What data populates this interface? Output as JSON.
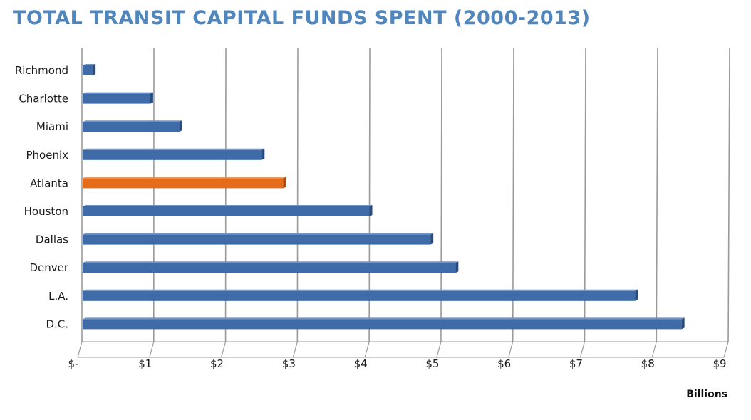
{
  "chart_data": {
    "type": "bar",
    "orientation": "horizontal",
    "title": "TOTAL TRANSIT CAPITAL FUNDS SPENT (2000-2013)",
    "xlabel": "Billions",
    "ylabel": "",
    "categories": [
      "Richmond",
      "Charlotte",
      "Miami",
      "Phoenix",
      "Atlanta",
      "Houston",
      "Dallas",
      "Denver",
      "L.A.",
      "D.C."
    ],
    "values": [
      0.15,
      0.95,
      1.35,
      2.5,
      2.8,
      4.0,
      4.85,
      5.2,
      7.7,
      8.35
    ],
    "highlight": "Atlanta",
    "xlim": [
      0,
      9
    ],
    "x_ticks": [
      {
        "value": 0,
        "label": "$-"
      },
      {
        "value": 1,
        "label": "$1"
      },
      {
        "value": 2,
        "label": "$2"
      },
      {
        "value": 3,
        "label": "$3"
      },
      {
        "value": 4,
        "label": "$4"
      },
      {
        "value": 5,
        "label": "$5"
      },
      {
        "value": 6,
        "label": "$6"
      },
      {
        "value": 7,
        "label": "$7"
      },
      {
        "value": 8,
        "label": "$8"
      },
      {
        "value": 9,
        "label": "$9"
      }
    ],
    "grid": true,
    "legend": "none",
    "colors": {
      "bar": "#3f6ca8",
      "bar_dark": "#2a4c7c",
      "bar_light": "#6f95c6",
      "highlight": "#e46c1a",
      "highlight_dark": "#a94b0e",
      "highlight_light": "#f29a5a",
      "grid": "#9a9a9a",
      "title": "#4f86bd"
    }
  }
}
